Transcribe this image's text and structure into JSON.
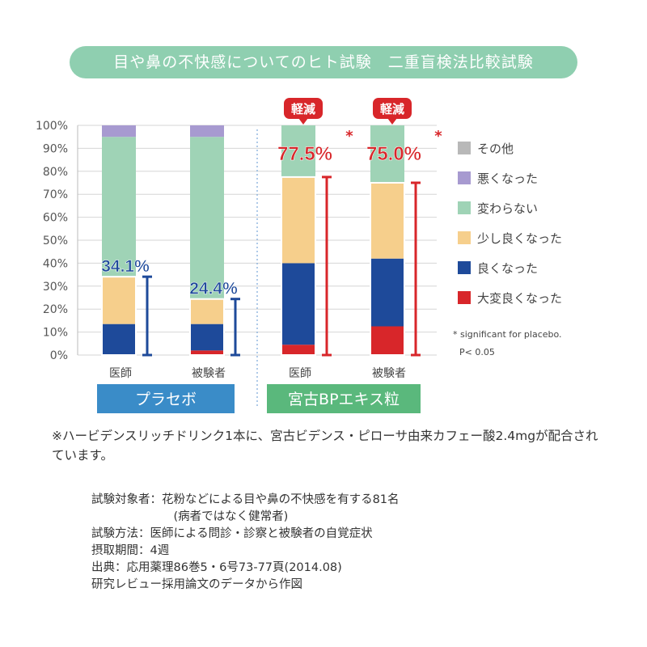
{
  "title": "目や鼻の不快感についてのヒト試験　二重盲検法比較試験",
  "chart_data": {
    "type": "stacked-bar",
    "categories": [
      "医師",
      "被験者",
      "医師",
      "被験者"
    ],
    "groups": [
      {
        "label": "プラセボ",
        "color": "#3a8cc8"
      },
      {
        "label": "宮古BPエキス粒",
        "color": "#5ab87c"
      }
    ],
    "series": [
      {
        "name": "大変良くなった",
        "color": "#d8262a",
        "values": [
          0,
          2,
          4.5,
          12.5
        ]
      },
      {
        "name": "良くなった",
        "color": "#1e4a9a",
        "values": [
          13.5,
          11.5,
          35.5,
          29.5
        ]
      },
      {
        "name": "少し良くなった",
        "color": "#f6cf8c",
        "values": [
          20.6,
          10.9,
          37.5,
          33
        ]
      },
      {
        "name": "変わらない",
        "color": "#9fd3b6",
        "values": [
          60.9,
          70.6,
          22.5,
          25
        ]
      },
      {
        "name": "悪くなった",
        "color": "#a79ad0",
        "values": [
          5,
          5,
          0,
          0
        ]
      },
      {
        "name": "その他",
        "color": "#b8b8b8",
        "values": [
          0,
          0,
          0,
          0
        ]
      }
    ],
    "ylim": [
      0,
      100
    ],
    "yticks": [
      "0%",
      "10%",
      "20%",
      "30%",
      "40%",
      "50%",
      "60%",
      "70%",
      "80%",
      "90%",
      "100%"
    ],
    "bar_labels": [
      "34.1%",
      "24.4%",
      "77.5%",
      "75.0%"
    ],
    "improvement_values": [
      34.1,
      24.4,
      77.5,
      75.0
    ],
    "badges": [
      "",
      "",
      "軽減",
      "軽減"
    ],
    "asterisks": [
      "",
      "",
      "*",
      "*"
    ],
    "significance_note": [
      "* significant for placebo.",
      "P< 0.05"
    ]
  },
  "note": "※ハービデンスリッチドリンク1本に、宮古ビデンス・ピローサ由来カフェー酸2.4mgが配合されています。",
  "info": [
    "試験対象者：花粉などによる目や鼻の不快感を有する81名",
    "　　　　　　　(病者ではなく健常者)",
    "試験方法：医師による問診・診察と被験者の自覚症状",
    "摂取期間：4週",
    "出典：応用薬理86巻5・6号73-77頁(2014.08)",
    "研究レビュー採用論文のデータから作図"
  ]
}
